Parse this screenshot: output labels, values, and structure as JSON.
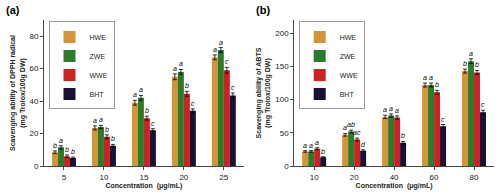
{
  "chart_data": [
    {
      "type": "bar",
      "title": "(a)",
      "xlabel": "Concentration  (μg/mL)",
      "ylabel": "Scavenging ability of DPPH radical\n(mg Trolox/100g DW)",
      "categories": [
        "5",
        "10",
        "15",
        "20",
        "25"
      ],
      "series": [
        {
          "name": "HWE",
          "color": "#D4943A",
          "values": [
            8.5,
            23.5,
            39.0,
            55.0,
            67.0
          ],
          "errors": [
            0.8,
            1.2,
            1.5,
            1.8,
            1.5
          ],
          "letter_labels": [
            "b",
            "a",
            "a",
            "a",
            "a"
          ]
        },
        {
          "name": "ZWE",
          "color": "#2D7A2D",
          "values": [
            11.5,
            24.0,
            42.0,
            58.0,
            71.5
          ],
          "errors": [
            1.0,
            1.0,
            1.5,
            1.5,
            1.5
          ],
          "letter_labels": [
            "a",
            "a",
            "a",
            "a",
            "a"
          ]
        },
        {
          "name": "WWE",
          "color": "#CC2222",
          "values": [
            6.0,
            18.0,
            29.5,
            44.5,
            59.0
          ],
          "errors": [
            0.8,
            1.2,
            1.2,
            1.5,
            1.8
          ],
          "letter_labels": [
            "b",
            "b",
            "b",
            "b",
            "c"
          ]
        },
        {
          "name": "BHT",
          "color": "#1A1035",
          "values": [
            5.0,
            12.5,
            22.0,
            34.0,
            43.5
          ],
          "errors": [
            0.5,
            0.8,
            1.0,
            1.2,
            1.5
          ],
          "letter_labels": [
            "b",
            "b",
            "c",
            "c",
            "c"
          ]
        }
      ],
      "ylim": [
        0,
        90
      ],
      "yticks": [
        0,
        20,
        40,
        60,
        80
      ],
      "grid": false,
      "legend": "upper left"
    },
    {
      "type": "bar",
      "title": "(b)",
      "xlabel": "Concentration  (μg/mL)",
      "ylabel": "Scavenging ability of ABTS\n(mg Trolox/100g DW)",
      "categories": [
        "10",
        "20",
        "40",
        "60",
        "80"
      ],
      "series": [
        {
          "name": "HWE",
          "color": "#D4943A",
          "values": [
            22.0,
            47.0,
            74.0,
            122.0,
            143.0
          ],
          "errors": [
            1.2,
            2.0,
            2.5,
            3.0,
            3.0
          ],
          "letter_labels": [
            "a",
            "a",
            "a",
            "a",
            "b"
          ]
        },
        {
          "name": "ZWE",
          "color": "#2D7A2D",
          "values": [
            22.0,
            52.0,
            76.0,
            122.0,
            158.0
          ],
          "errors": [
            1.2,
            2.0,
            2.5,
            3.0,
            3.5
          ],
          "letter_labels": [
            "a",
            "ab",
            "a",
            "a",
            "a"
          ]
        },
        {
          "name": "WWE",
          "color": "#CC2222",
          "values": [
            26.0,
            40.0,
            73.0,
            111.0,
            141.0
          ],
          "errors": [
            1.5,
            2.0,
            2.5,
            3.0,
            3.0
          ],
          "letter_labels": [
            "a",
            "ac",
            "a",
            "b",
            "b"
          ]
        },
        {
          "name": "BHT",
          "color": "#1A1035",
          "values": [
            13.0,
            23.0,
            35.0,
            60.0,
            81.0
          ],
          "errors": [
            1.0,
            1.5,
            2.0,
            2.5,
            3.0
          ],
          "letter_labels": [
            "b",
            "d",
            "b",
            "c",
            "c"
          ]
        }
      ],
      "ylim": [
        0,
        220
      ],
      "yticks": [
        0,
        50,
        100,
        150,
        200
      ],
      "grid": false,
      "legend": "upper left"
    }
  ]
}
